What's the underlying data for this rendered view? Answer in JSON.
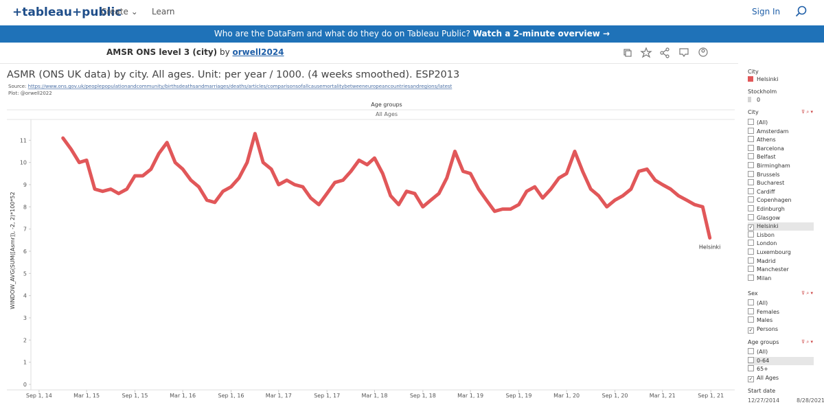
{
  "nav": {
    "logo": "+tableau+public",
    "links": [
      "Create",
      "Learn"
    ],
    "sign_in": "Sign In"
  },
  "banner": {
    "text": "Who are the DataFam and what do they do on Tableau Public?",
    "link": "Watch a 2-minute overview →"
  },
  "viz_header": {
    "title": "AMSR ONS level 3 (city)",
    "by": "by",
    "author": "orwell2024"
  },
  "chart_data": {
    "type": "line",
    "title": "ASMR (ONS UK data) by city. All ages. Unit: per year / 1000. (4 weeks smoothed). ESP2013",
    "source_label": "Source:",
    "source_url": "https://www.ons.gov.uk/peoplepopulationandcommunity/birthsdeathsandmarriages/deaths/articles/comparisonsofallcausemortalitybetweeneuropeancountriesandregions/latest",
    "credit": "Plot: @orwell2022",
    "header": "Age groups",
    "subheader": "All Ages",
    "y_label": "WINDOW_AVG(SUM([Asmr]), -2, 2)*100*52",
    "x": [
      "2014-12-01",
      "2015-01-01",
      "2015-02-01",
      "2015-03-01",
      "2015-04-01",
      "2015-05-01",
      "2015-06-01",
      "2015-07-01",
      "2015-08-01",
      "2015-09-01",
      "2015-10-01",
      "2015-11-01",
      "2015-12-01",
      "2016-01-01",
      "2016-02-01",
      "2016-03-01",
      "2016-04-01",
      "2016-05-01",
      "2016-06-01",
      "2016-07-01",
      "2016-08-01",
      "2016-09-01",
      "2016-10-01",
      "2016-11-01",
      "2016-12-01",
      "2017-01-01",
      "2017-02-01",
      "2017-03-01",
      "2017-04-01",
      "2017-05-01",
      "2017-06-01",
      "2017-07-01",
      "2017-08-01",
      "2017-09-01",
      "2017-10-01",
      "2017-11-01",
      "2017-12-01",
      "2018-01-01",
      "2018-02-01",
      "2018-03-01",
      "2018-04-01",
      "2018-05-01",
      "2018-06-01",
      "2018-07-01",
      "2018-08-01",
      "2018-09-01",
      "2018-10-01",
      "2018-11-01",
      "2018-12-01",
      "2019-01-01",
      "2019-02-01",
      "2019-03-01",
      "2019-04-01",
      "2019-05-01",
      "2019-06-01",
      "2019-07-01",
      "2019-08-01",
      "2019-09-01",
      "2019-10-01",
      "2019-11-01",
      "2019-12-01",
      "2020-01-01",
      "2020-02-01",
      "2020-03-01",
      "2020-04-01",
      "2020-05-01",
      "2020-06-01",
      "2020-07-01",
      "2020-08-01",
      "2020-09-01",
      "2020-10-01",
      "2020-11-01",
      "2020-12-01",
      "2021-01-01",
      "2021-02-01",
      "2021-03-01",
      "2021-04-01",
      "2021-05-01",
      "2021-06-01",
      "2021-07-01",
      "2021-08-01",
      "2021-08-28"
    ],
    "series": [
      {
        "name": "Helsinki",
        "color": "#e15759",
        "values": [
          11.1,
          10.6,
          10.0,
          10.1,
          8.8,
          8.7,
          8.8,
          8.6,
          8.8,
          9.4,
          9.4,
          9.7,
          10.4,
          10.9,
          10.0,
          9.7,
          9.2,
          8.9,
          8.3,
          8.2,
          8.7,
          8.9,
          9.3,
          10.0,
          11.3,
          10.0,
          9.7,
          9.0,
          9.2,
          9.0,
          8.9,
          8.4,
          8.1,
          8.6,
          9.1,
          9.2,
          9.6,
          10.1,
          9.9,
          10.2,
          9.5,
          8.5,
          8.1,
          8.7,
          8.6,
          8.0,
          8.3,
          8.6,
          9.3,
          10.5,
          9.6,
          9.5,
          8.8,
          8.3,
          7.8,
          7.9,
          7.9,
          8.1,
          8.7,
          8.9,
          8.4,
          8.8,
          9.3,
          9.5,
          10.5,
          9.6,
          8.8,
          8.5,
          8.0,
          8.3,
          8.5,
          8.8,
          9.6,
          9.7,
          9.2,
          9.0,
          8.8,
          8.5,
          8.3,
          8.1,
          8.0,
          6.6
        ]
      }
    ],
    "xlim": [
      "2014-08-01",
      "2021-12-01"
    ],
    "xticks": [
      {
        "value": "2014-09-01",
        "label": "Sep 1, 14"
      },
      {
        "value": "2015-03-01",
        "label": "Mar 1, 15"
      },
      {
        "value": "2015-09-01",
        "label": "Sep 1, 15"
      },
      {
        "value": "2016-03-01",
        "label": "Mar 1, 16"
      },
      {
        "value": "2016-09-01",
        "label": "Sep 1, 16"
      },
      {
        "value": "2017-03-01",
        "label": "Mar 1, 17"
      },
      {
        "value": "2017-09-01",
        "label": "Sep 1, 17"
      },
      {
        "value": "2018-03-01",
        "label": "Mar 1, 18"
      },
      {
        "value": "2018-09-01",
        "label": "Sep 1, 18"
      },
      {
        "value": "2019-03-01",
        "label": "Mar 1, 19"
      },
      {
        "value": "2019-09-01",
        "label": "Sep 1, 19"
      },
      {
        "value": "2020-03-01",
        "label": "Mar 1, 20"
      },
      {
        "value": "2020-09-01",
        "label": "Sep 1, 20"
      },
      {
        "value": "2021-03-01",
        "label": "Mar 1, 21"
      },
      {
        "value": "2021-09-01",
        "label": "Sep 1, 21"
      }
    ],
    "ylim": [
      0,
      12
    ],
    "yticks": [
      0,
      1,
      2,
      3,
      4,
      5,
      6,
      7,
      8,
      9,
      10,
      11
    ],
    "grid": false
  },
  "legends": [
    {
      "title": "City"
    },
    {
      "title": "Stockholm",
      "items": [
        "0"
      ],
      "color": "#d4d4d4"
    }
  ],
  "filters": [
    {
      "title": "City",
      "options": [
        "(All)",
        "Amsterdam",
        "Athens",
        "Barcelona",
        "Belfast",
        "Birmingham",
        "Brussels",
        "Bucharest",
        "Cardiff",
        "Copenhagen",
        "Edinburgh",
        "Glasgow",
        "Helsinki",
        "Lisbon",
        "London",
        "Luxembourg",
        "Madrid",
        "Manchester",
        "Milan"
      ],
      "checked": [
        12
      ],
      "highlighted": [
        12
      ]
    },
    {
      "title": "Sex",
      "options": [
        "(All)",
        "Females",
        "Males",
        "Persons"
      ],
      "checked": [
        3
      ],
      "highlighted": []
    },
    {
      "title": "Age groups",
      "options": [
        "(All)",
        "0-64",
        "65+",
        "All Ages"
      ],
      "checked": [
        3
      ],
      "highlighted": [
        1
      ]
    }
  ],
  "date_filter": {
    "title": "Start date",
    "from": "12/27/2014",
    "to": "8/28/2021"
  }
}
